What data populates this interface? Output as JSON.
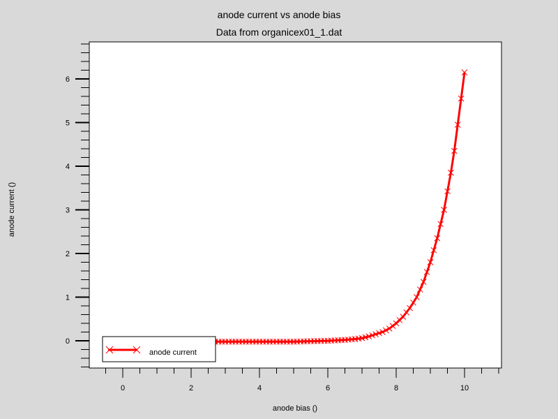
{
  "chart_data": {
    "type": "line",
    "title": "anode current vs anode bias",
    "subtitle": "Data from organicex01_1.dat",
    "xlabel": "anode bias ()",
    "ylabel": "anode current ()",
    "xlim": [
      -1,
      11
    ],
    "ylim": [
      -0.6,
      6.8
    ],
    "x_ticks": [
      "0",
      "2",
      "4",
      "6",
      "8",
      "10"
    ],
    "y_ticks": [
      "0",
      "1",
      "2",
      "3",
      "4",
      "5",
      "6"
    ],
    "legend": {
      "position": "bottom-left"
    },
    "series": [
      {
        "name": "anode current",
        "color": "#ff0000",
        "marker": "x",
        "x": [
          2.7,
          3.0,
          3.5,
          4.0,
          4.5,
          5.0,
          5.5,
          6.0,
          6.5,
          6.8,
          7.0,
          7.2,
          7.4,
          7.6,
          7.8,
          8.0,
          8.2,
          8.4,
          8.6,
          8.8,
          9.0,
          9.2,
          9.4,
          9.6,
          9.7,
          9.8,
          9.9,
          10.0
        ],
        "y": [
          -0.02,
          -0.02,
          -0.02,
          -0.02,
          -0.02,
          -0.02,
          -0.01,
          0.0,
          0.02,
          0.04,
          0.06,
          0.1,
          0.15,
          0.2,
          0.28,
          0.4,
          0.55,
          0.75,
          1.0,
          1.35,
          1.8,
          2.35,
          3.0,
          3.85,
          4.35,
          4.95,
          5.55,
          6.15
        ]
      }
    ]
  }
}
